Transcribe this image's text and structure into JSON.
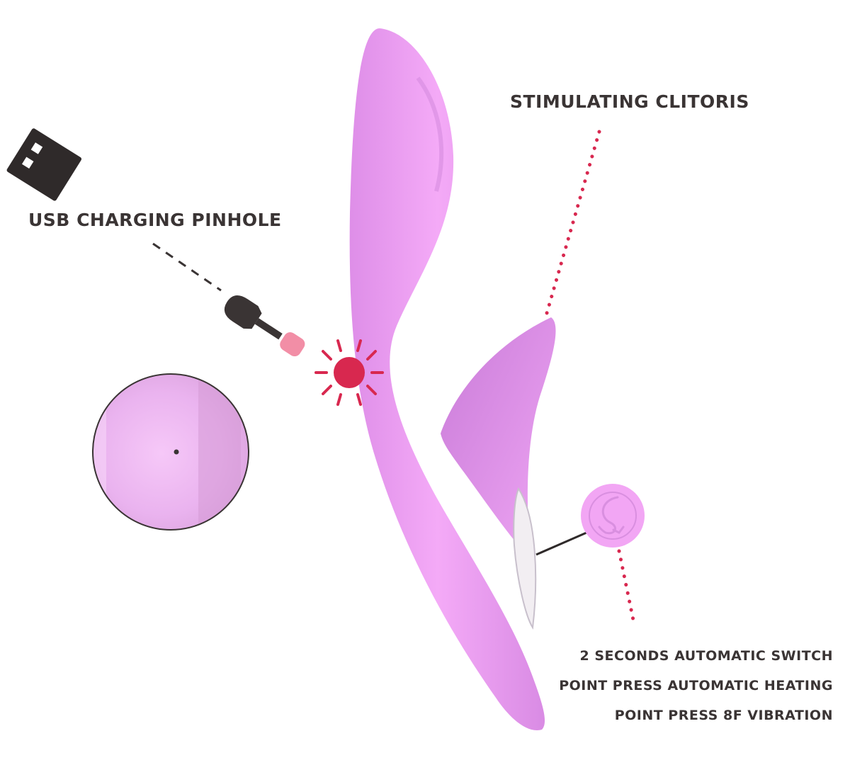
{
  "callouts": {
    "usb": "USB CHARGING PINHOLE",
    "clitoris": "STIMULATING CLITORIS"
  },
  "features": [
    "2 SECONDS AUTOMATIC SWITCH",
    "POINT PRESS AUTOMATIC HEATING",
    "POINT PRESS 8F VIBRATION"
  ],
  "icons": {
    "usb": "usb-plug-icon",
    "charger": "charging-plug-icon",
    "indicator": "charging-port-indicator-icon",
    "button": "control-button-logo-icon"
  },
  "colors": {
    "text": "#3a3434",
    "accent": "#d8284f",
    "device": "#ee9ff2",
    "plug_tip": "#f28ea6"
  }
}
